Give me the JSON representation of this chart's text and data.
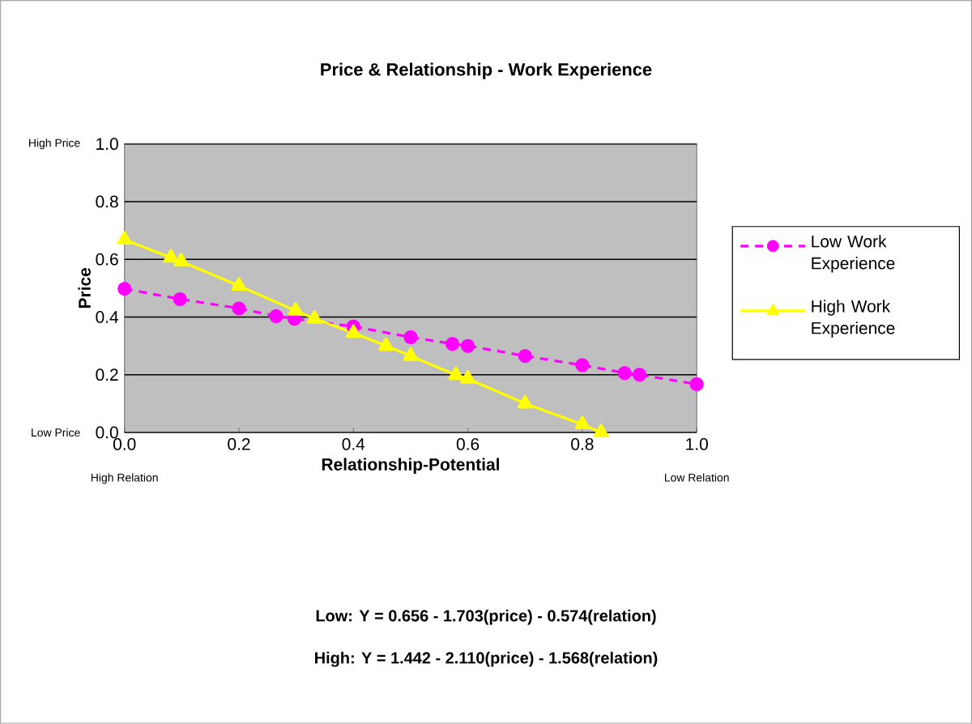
{
  "chart_data": {
    "type": "line",
    "title": "Price & Relationship - Work Experience",
    "xlabel": "Relationship-Potential",
    "ylabel": "Price",
    "xlim": [
      0,
      1
    ],
    "ylim": [
      0,
      1
    ],
    "xticks": [
      {
        "value": 0,
        "label": "0.0"
      },
      {
        "value": 0.2,
        "label": "0.2"
      },
      {
        "value": 0.4,
        "label": "0.4"
      },
      {
        "value": 0.6,
        "label": "0.6"
      },
      {
        "value": 0.8,
        "label": "0.8"
      },
      {
        "value": 1,
        "label": "1.0"
      }
    ],
    "yticks": [
      {
        "value": 0,
        "label": "0.0"
      },
      {
        "value": 0.2,
        "label": "0.2"
      },
      {
        "value": 0.4,
        "label": "0.4"
      },
      {
        "value": 0.6,
        "label": "0.6"
      },
      {
        "value": 0.8,
        "label": "0.8"
      },
      {
        "value": 1,
        "label": "1.0"
      }
    ],
    "grid": "y",
    "legend": "right",
    "series": [
      {
        "name": "Low Work Experience",
        "color": "#ff00ff",
        "marker": "circle",
        "line_style": "dashed",
        "x": [
          0,
          0.097,
          0.2,
          0.265,
          0.297,
          0.4,
          0.5,
          0.573,
          0.6,
          0.7,
          0.8,
          0.874,
          0.9,
          1.0
        ],
        "values": [
          0.498,
          0.462,
          0.43,
          0.403,
          0.394,
          0.367,
          0.33,
          0.307,
          0.3,
          0.265,
          0.233,
          0.206,
          0.2,
          0.167
        ]
      },
      {
        "name": "High Work Experience",
        "color": "#ffff00",
        "marker": "triangle",
        "line_style": "solid",
        "x": [
          0,
          0.081,
          0.099,
          0.2,
          0.299,
          0.332,
          0.4,
          0.457,
          0.5,
          0.579,
          0.6,
          0.7,
          0.8,
          0.833
        ],
        "values": [
          0.668,
          0.606,
          0.593,
          0.508,
          0.422,
          0.394,
          0.345,
          0.3,
          0.265,
          0.199,
          0.186,
          0.1,
          0.028,
          0.0
        ]
      }
    ],
    "annotations": [
      "High Price",
      "Low Price",
      "High Relation",
      "Low Relation",
      "Low: Y = 0.656 - 1.703(price) - 0.574(relation)",
      "High: Y = 1.442 - 2.110(price) - 1.568(relation)"
    ]
  }
}
